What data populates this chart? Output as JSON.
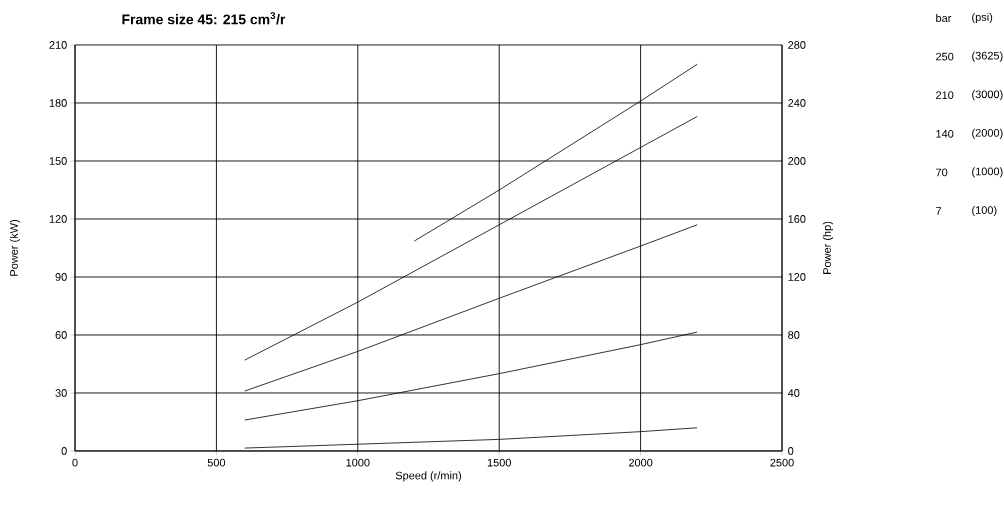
{
  "chart_data": {
    "type": "line",
    "title": "Frame size 45: 215 cm$^{3}$/r",
    "xlabel": "Speed (r/min)",
    "ylabel": "Power (kW)",
    "y2label": "Power  (hp)",
    "xlim": [
      0,
      2500
    ],
    "xticks": [
      0,
      500,
      1000,
      1500,
      2000,
      2500
    ],
    "ylim": [
      0,
      210
    ],
    "yticks": [
      0,
      30,
      60,
      90,
      120,
      150,
      180,
      210
    ],
    "y2lim": [
      0,
      280
    ],
    "y2ticks": [
      0,
      40,
      80,
      120,
      160,
      200,
      240,
      280
    ],
    "grid": true,
    "marker": "none",
    "line_style": "solid",
    "series": [
      {
        "color": "#000000",
        "x": [
          1200,
          1500,
          2000,
          2200
        ],
        "values": [
          108.6,
          135,
          181,
          200
        ]
      },
      {
        "color": "#000000",
        "x": [
          600,
          1000,
          1500,
          2000,
          2200
        ],
        "values": [
          47,
          77,
          117,
          157,
          173
        ]
      },
      {
        "color": "#000000",
        "x": [
          600,
          1000,
          1500,
          2000,
          2200
        ],
        "values": [
          31,
          51.5,
          79,
          106,
          117
        ]
      },
      {
        "color": "#000000",
        "x": [
          600,
          1000,
          1500,
          2000,
          2200
        ],
        "values": [
          16,
          26,
          40,
          55,
          61.5
        ]
      },
      {
        "color": "#000000",
        "x": [
          600,
          1000,
          1500,
          2000,
          2200
        ],
        "values": [
          1.5,
          3.5,
          6,
          10,
          12
        ]
      }
    ],
    "annotations": [
      "bar",
      "(psi)",
      "250",
      "(3625)",
      "210",
      "(3000)",
      "140",
      "(2000)",
      "70",
      "(1000)",
      "7",
      "(100)"
    ]
  }
}
